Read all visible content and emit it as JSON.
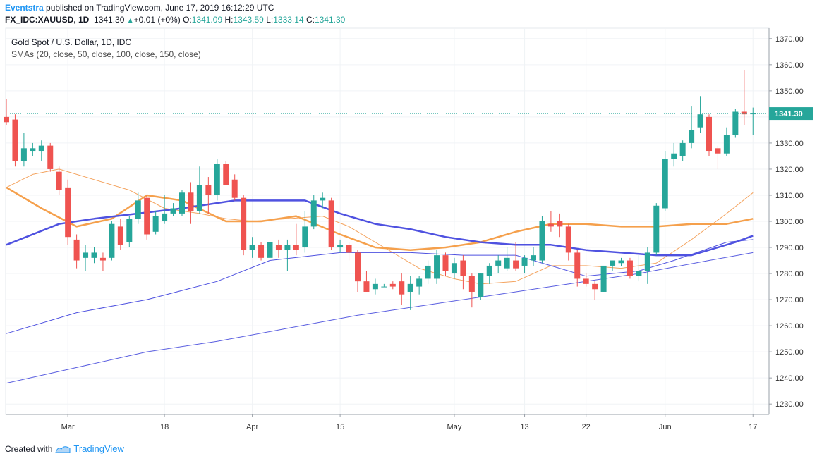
{
  "header": {
    "author": "Eventstra",
    "published_text": " published on TradingView.com, June 17, 2019 16:12:29 UTC",
    "symbol": "FX_IDC:XAUUSD, 1D",
    "last": "1341.30",
    "change": "+0.01 (+0%)",
    "o_label": "O:",
    "o_value": "1341.09",
    "h_label": "H:",
    "h_value": "1343.59",
    "l_label": "L:",
    "l_value": "1333.14",
    "c_label": "C:",
    "c_value": "1341.30"
  },
  "legend": {
    "title": "Gold Spot / U.S. Dollar, 1D, IDC",
    "indicators": "SMAs (20, close, 50, close, 100, close, 150, close)"
  },
  "footer": {
    "created_with": "Created with",
    "brand": "TradingView"
  },
  "price_tag": "1341.30",
  "colors": {
    "up": "#26a69a",
    "down": "#ef5350",
    "sma20": "#f4a460",
    "sma50": "#f5a04c",
    "sma100": "#4f52e0",
    "sma150": "#5a5ee0",
    "price_line": "#26a69a"
  },
  "chart_data": {
    "type": "candlestick",
    "title": "Gold Spot / U.S. Dollar, 1D, IDC",
    "ylim": [
      1226,
      1374
    ],
    "y_ticks": [
      "1370.00",
      "1360.00",
      "1350.00",
      "1340.00",
      "1330.00",
      "1320.00",
      "1310.00",
      "1300.00",
      "1290.00",
      "1280.00",
      "1270.00",
      "1260.00",
      "1250.00",
      "1240.00",
      "1230.00"
    ],
    "x_labels": [
      {
        "index": 7,
        "label": "Mar"
      },
      {
        "index": 18,
        "label": "18"
      },
      {
        "index": 28,
        "label": "Apr"
      },
      {
        "index": 38,
        "label": "15"
      },
      {
        "index": 51,
        "label": "May"
      },
      {
        "index": 59,
        "label": "13"
      },
      {
        "index": 66,
        "label": "22"
      },
      {
        "index": 75,
        "label": "Jun"
      },
      {
        "index": 85,
        "label": "17"
      }
    ],
    "candles": [
      {
        "o": 1340,
        "h": 1347,
        "l": 1337,
        "c": 1338
      },
      {
        "o": 1339,
        "h": 1341,
        "l": 1321,
        "c": 1323
      },
      {
        "o": 1323,
        "h": 1334,
        "l": 1321,
        "c": 1328
      },
      {
        "o": 1327,
        "h": 1330,
        "l": 1325,
        "c": 1328
      },
      {
        "o": 1327,
        "h": 1331,
        "l": 1323,
        "c": 1329
      },
      {
        "o": 1329,
        "h": 1330,
        "l": 1319,
        "c": 1320
      },
      {
        "o": 1319,
        "h": 1321,
        "l": 1310,
        "c": 1312
      },
      {
        "o": 1313,
        "h": 1316,
        "l": 1291,
        "c": 1294
      },
      {
        "o": 1293,
        "h": 1295,
        "l": 1282,
        "c": 1285
      },
      {
        "o": 1286,
        "h": 1291,
        "l": 1281,
        "c": 1288
      },
      {
        "o": 1286,
        "h": 1290,
        "l": 1284,
        "c": 1288
      },
      {
        "o": 1286,
        "h": 1288,
        "l": 1281,
        "c": 1285
      },
      {
        "o": 1286,
        "h": 1300,
        "l": 1285,
        "c": 1299
      },
      {
        "o": 1298,
        "h": 1301,
        "l": 1289,
        "c": 1291
      },
      {
        "o": 1292,
        "h": 1302,
        "l": 1290,
        "c": 1301
      },
      {
        "o": 1301,
        "h": 1311,
        "l": 1299,
        "c": 1308
      },
      {
        "o": 1309,
        "h": 1310,
        "l": 1293,
        "c": 1295
      },
      {
        "o": 1296,
        "h": 1304,
        "l": 1295,
        "c": 1302
      },
      {
        "o": 1300,
        "h": 1310,
        "l": 1299,
        "c": 1303
      },
      {
        "o": 1303,
        "h": 1307,
        "l": 1302,
        "c": 1305
      },
      {
        "o": 1303,
        "h": 1312,
        "l": 1302,
        "c": 1311
      },
      {
        "o": 1311,
        "h": 1315,
        "l": 1299,
        "c": 1304
      },
      {
        "o": 1304,
        "h": 1321,
        "l": 1303,
        "c": 1314
      },
      {
        "o": 1314,
        "h": 1317,
        "l": 1303,
        "c": 1310
      },
      {
        "o": 1310,
        "h": 1324,
        "l": 1308,
        "c": 1322
      },
      {
        "o": 1322,
        "h": 1323,
        "l": 1315,
        "c": 1314
      },
      {
        "o": 1316,
        "h": 1318,
        "l": 1308,
        "c": 1309
      },
      {
        "o": 1309,
        "h": 1310,
        "l": 1287,
        "c": 1289
      },
      {
        "o": 1289,
        "h": 1294,
        "l": 1286,
        "c": 1291
      },
      {
        "o": 1291,
        "h": 1292,
        "l": 1285,
        "c": 1286
      },
      {
        "o": 1286,
        "h": 1294,
        "l": 1284,
        "c": 1292
      },
      {
        "o": 1291,
        "h": 1293,
        "l": 1286,
        "c": 1289
      },
      {
        "o": 1289,
        "h": 1293,
        "l": 1281,
        "c": 1291
      },
      {
        "o": 1291,
        "h": 1299,
        "l": 1287,
        "c": 1289
      },
      {
        "o": 1290,
        "h": 1304,
        "l": 1288,
        "c": 1298
      },
      {
        "o": 1298,
        "h": 1310,
        "l": 1297,
        "c": 1308
      },
      {
        "o": 1308,
        "h": 1311,
        "l": 1305,
        "c": 1309
      },
      {
        "o": 1308,
        "h": 1309,
        "l": 1289,
        "c": 1290
      },
      {
        "o": 1290,
        "h": 1293,
        "l": 1288,
        "c": 1291
      },
      {
        "o": 1291,
        "h": 1292,
        "l": 1285,
        "c": 1288
      },
      {
        "o": 1288,
        "h": 1289,
        "l": 1273,
        "c": 1277
      },
      {
        "o": 1277,
        "h": 1281,
        "l": 1273,
        "c": 1273
      },
      {
        "o": 1274,
        "h": 1278,
        "l": 1272,
        "c": 1276
      },
      {
        "o": 1275,
        "h": 1276,
        "l": 1275,
        "c": 1275
      },
      {
        "o": 1276,
        "h": 1277,
        "l": 1274,
        "c": 1275
      },
      {
        "o": 1277,
        "h": 1280,
        "l": 1268,
        "c": 1272
      },
      {
        "o": 1273,
        "h": 1279,
        "l": 1266,
        "c": 1276
      },
      {
        "o": 1275,
        "h": 1279,
        "l": 1272,
        "c": 1278
      },
      {
        "o": 1278,
        "h": 1285,
        "l": 1276,
        "c": 1283
      },
      {
        "o": 1278,
        "h": 1289,
        "l": 1276,
        "c": 1287
      },
      {
        "o": 1287,
        "h": 1288,
        "l": 1279,
        "c": 1281
      },
      {
        "o": 1280,
        "h": 1286,
        "l": 1278,
        "c": 1284
      },
      {
        "o": 1285,
        "h": 1287,
        "l": 1274,
        "c": 1279
      },
      {
        "o": 1279,
        "h": 1280,
        "l": 1267,
        "c": 1273
      },
      {
        "o": 1271,
        "h": 1280,
        "l": 1270,
        "c": 1280
      },
      {
        "o": 1279,
        "h": 1284,
        "l": 1276,
        "c": 1283
      },
      {
        "o": 1283,
        "h": 1287,
        "l": 1280,
        "c": 1285
      },
      {
        "o": 1282,
        "h": 1290,
        "l": 1281,
        "c": 1286
      },
      {
        "o": 1285,
        "h": 1292,
        "l": 1281,
        "c": 1282
      },
      {
        "o": 1283,
        "h": 1287,
        "l": 1280,
        "c": 1286
      },
      {
        "o": 1285,
        "h": 1290,
        "l": 1283,
        "c": 1287
      },
      {
        "o": 1285,
        "h": 1302,
        "l": 1284,
        "c": 1300
      },
      {
        "o": 1299,
        "h": 1304,
        "l": 1296,
        "c": 1298
      },
      {
        "o": 1300,
        "h": 1303,
        "l": 1294,
        "c": 1298
      },
      {
        "o": 1298,
        "h": 1299,
        "l": 1285,
        "c": 1288
      },
      {
        "o": 1288,
        "h": 1289,
        "l": 1275,
        "c": 1278
      },
      {
        "o": 1278,
        "h": 1280,
        "l": 1275,
        "c": 1276
      },
      {
        "o": 1276,
        "h": 1277,
        "l": 1270,
        "c": 1274
      },
      {
        "o": 1273,
        "h": 1282,
        "l": 1273,
        "c": 1283
      },
      {
        "o": 1283,
        "h": 1285,
        "l": 1281,
        "c": 1285
      },
      {
        "o": 1284,
        "h": 1286,
        "l": 1283,
        "c": 1285
      },
      {
        "o": 1285,
        "h": 1286,
        "l": 1278,
        "c": 1279
      },
      {
        "o": 1279,
        "h": 1287,
        "l": 1277,
        "c": 1281
      },
      {
        "o": 1281,
        "h": 1290,
        "l": 1276,
        "c": 1288
      },
      {
        "o": 1288,
        "h": 1307,
        "l": 1287,
        "c": 1306
      },
      {
        "o": 1305,
        "h": 1327,
        "l": 1304,
        "c": 1324
      },
      {
        "o": 1324,
        "h": 1330,
        "l": 1321,
        "c": 1326
      },
      {
        "o": 1325,
        "h": 1331,
        "l": 1323,
        "c": 1330
      },
      {
        "o": 1330,
        "h": 1344,
        "l": 1328,
        "c": 1335
      },
      {
        "o": 1336,
        "h": 1348,
        "l": 1334,
        "c": 1341
      },
      {
        "o": 1340,
        "h": 1341,
        "l": 1325,
        "c": 1327
      },
      {
        "o": 1328,
        "h": 1329,
        "l": 1320,
        "c": 1326
      },
      {
        "o": 1326,
        "h": 1336,
        "l": 1325,
        "c": 1333
      },
      {
        "o": 1333,
        "h": 1343,
        "l": 1332,
        "c": 1342
      },
      {
        "o": 1342,
        "h": 1358,
        "l": 1337,
        "c": 1341
      },
      {
        "o": 1341.09,
        "h": 1343.59,
        "l": 1333.14,
        "c": 1341.3
      }
    ],
    "series": [
      {
        "name": "SMA 20",
        "points": [
          [
            0,
            1313
          ],
          [
            3,
            1318
          ],
          [
            6,
            1320
          ],
          [
            10,
            1316
          ],
          [
            14,
            1312
          ],
          [
            18,
            1305
          ],
          [
            22,
            1303
          ],
          [
            25,
            1301
          ],
          [
            28,
            1300
          ],
          [
            32,
            1301
          ],
          [
            36,
            1302
          ],
          [
            39,
            1298
          ],
          [
            43,
            1290
          ],
          [
            47,
            1282
          ],
          [
            51,
            1278
          ],
          [
            54,
            1276
          ],
          [
            58,
            1277
          ],
          [
            62,
            1283
          ],
          [
            66,
            1283
          ],
          [
            70,
            1282
          ],
          [
            74,
            1284
          ],
          [
            78,
            1293
          ],
          [
            82,
            1303
          ],
          [
            85,
            1311
          ]
        ]
      },
      {
        "name": "SMA 50",
        "points": [
          [
            0,
            1313
          ],
          [
            4,
            1305
          ],
          [
            8,
            1298
          ],
          [
            12,
            1301
          ],
          [
            16,
            1310
          ],
          [
            20,
            1308
          ],
          [
            25,
            1300
          ],
          [
            29,
            1300
          ],
          [
            33,
            1302
          ],
          [
            38,
            1295
          ],
          [
            42,
            1290
          ],
          [
            46,
            1289
          ],
          [
            50,
            1290
          ],
          [
            54,
            1292
          ],
          [
            58,
            1296
          ],
          [
            62,
            1299
          ],
          [
            66,
            1299
          ],
          [
            70,
            1298
          ],
          [
            74,
            1298
          ],
          [
            78,
            1299
          ],
          [
            82,
            1299
          ],
          [
            85,
            1301
          ]
        ]
      },
      {
        "name": "SMA 100",
        "points": [
          [
            0,
            1291
          ],
          [
            6,
            1299
          ],
          [
            10,
            1301
          ],
          [
            15,
            1303
          ],
          [
            20,
            1305
          ],
          [
            26,
            1308
          ],
          [
            30,
            1308
          ],
          [
            34,
            1308
          ],
          [
            38,
            1303
          ],
          [
            42,
            1299
          ],
          [
            46,
            1297
          ],
          [
            50,
            1294
          ],
          [
            54,
            1292
          ],
          [
            58,
            1291
          ],
          [
            62,
            1291
          ],
          [
            66,
            1289
          ],
          [
            70,
            1288
          ],
          [
            74,
            1287
          ],
          [
            78,
            1287
          ],
          [
            80,
            1289
          ],
          [
            83,
            1292
          ],
          [
            85,
            1294.5
          ]
        ]
      },
      {
        "name": "SMA 150",
        "points": [
          [
            0,
            1257
          ],
          [
            8,
            1265
          ],
          [
            16,
            1270
          ],
          [
            24,
            1277
          ],
          [
            30,
            1285
          ],
          [
            38,
            1288
          ],
          [
            46,
            1288
          ],
          [
            52,
            1287
          ],
          [
            58,
            1287
          ],
          [
            66,
            1279
          ],
          [
            72,
            1281
          ],
          [
            76,
            1285
          ],
          [
            82,
            1292
          ],
          [
            85,
            1293
          ]
        ]
      },
      {
        "name": "SMA 150 base",
        "points": [
          [
            0,
            1238
          ],
          [
            8,
            1244
          ],
          [
            16,
            1250
          ],
          [
            24,
            1254
          ],
          [
            32,
            1259
          ],
          [
            40,
            1264
          ],
          [
            48,
            1268
          ],
          [
            56,
            1272
          ],
          [
            64,
            1276
          ],
          [
            72,
            1280
          ],
          [
            80,
            1285
          ],
          [
            85,
            1288
          ]
        ]
      }
    ]
  }
}
